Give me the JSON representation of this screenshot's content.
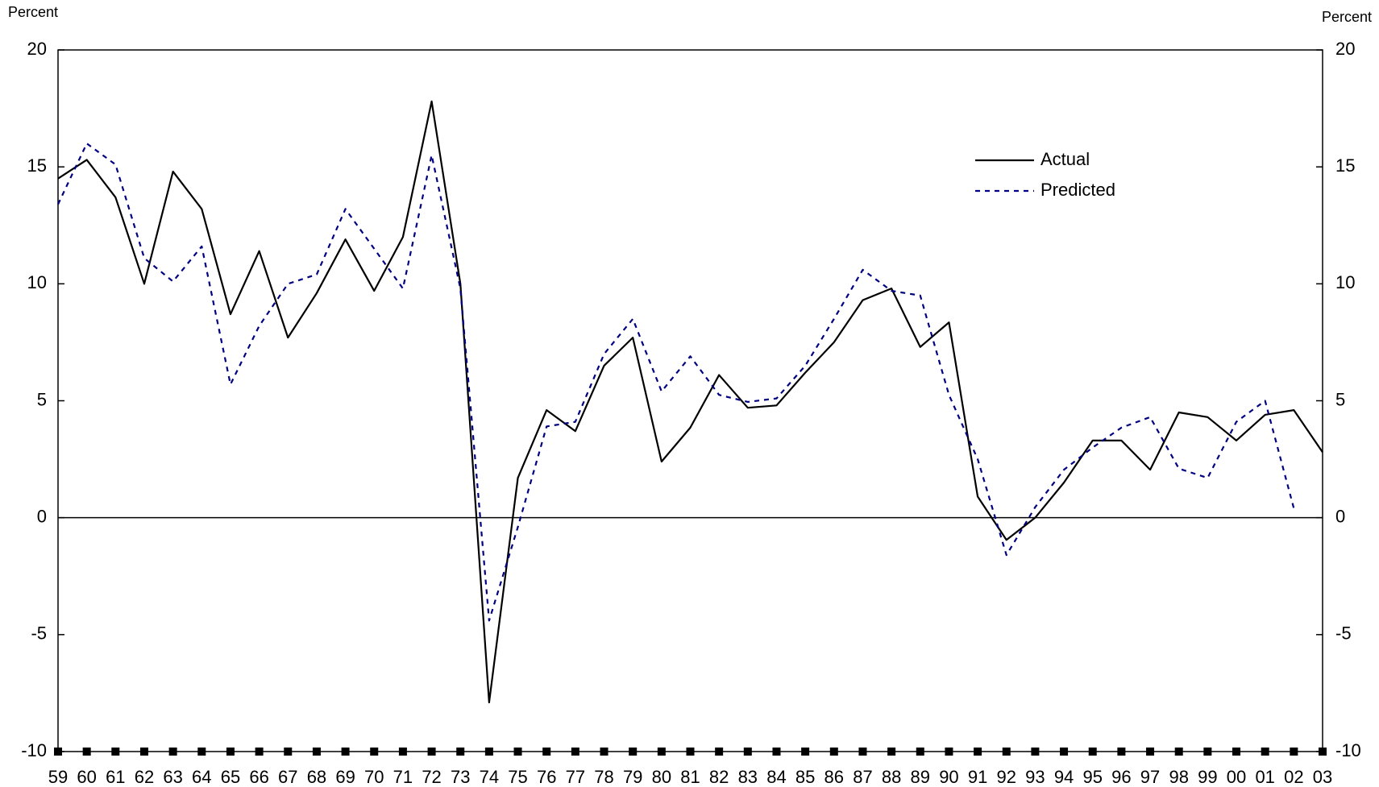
{
  "chart_data": {
    "type": "line",
    "y_label": "Percent",
    "y2_label": "Percent",
    "categories": [
      "59",
      "60",
      "61",
      "62",
      "63",
      "64",
      "65",
      "66",
      "67",
      "68",
      "69",
      "70",
      "71",
      "72",
      "73",
      "74",
      "75",
      "76",
      "77",
      "78",
      "79",
      "80",
      "81",
      "82",
      "83",
      "84",
      "85",
      "86",
      "87",
      "88",
      "89",
      "90",
      "91",
      "92",
      "93",
      "94",
      "95",
      "96",
      "97",
      "98",
      "99",
      "00",
      "01",
      "02",
      "03"
    ],
    "series": [
      {
        "name": "Actual",
        "color": "#000000",
        "dashed": false,
        "values": [
          14.5,
          15.3,
          13.7,
          10.0,
          14.8,
          13.2,
          8.7,
          11.4,
          7.7,
          9.6,
          11.9,
          9.7,
          12.0,
          17.8,
          10.0,
          -7.9,
          1.7,
          4.6,
          3.7,
          6.5,
          7.7,
          2.4,
          3.85,
          6.1,
          4.7,
          4.8,
          6.2,
          7.5,
          9.3,
          9.8,
          7.3,
          8.35,
          0.9,
          -0.95,
          0.0,
          1.5,
          3.3,
          3.3,
          2.05,
          4.5,
          4.3,
          3.3,
          4.4,
          4.6,
          2.8
        ]
      },
      {
        "name": "Predicted",
        "color": "#000080",
        "dashed": true,
        "values": [
          13.4,
          16.0,
          15.1,
          11.1,
          10.1,
          11.6,
          5.7,
          8.2,
          10.0,
          10.4,
          13.2,
          11.5,
          9.8,
          15.5,
          9.8,
          -4.4,
          -0.4,
          3.9,
          4.1,
          7.0,
          8.5,
          5.4,
          6.9,
          5.25,
          4.95,
          5.1,
          6.5,
          8.5,
          10.6,
          9.7,
          9.5,
          5.25,
          2.5,
          -1.6,
          0.45,
          2.05,
          3.0,
          3.85,
          4.3,
          2.1,
          1.7,
          4.1,
          5.0,
          0.4,
          null
        ]
      }
    ],
    "ylim": [
      -10,
      20
    ],
    "yticks": [
      -10,
      -5,
      0,
      5,
      10,
      15,
      20
    ],
    "y2lim": [
      -10,
      20
    ],
    "y2ticks": [
      -10,
      -5,
      0,
      5,
      10,
      15,
      20
    ],
    "grid": false,
    "legend": "upper right"
  }
}
